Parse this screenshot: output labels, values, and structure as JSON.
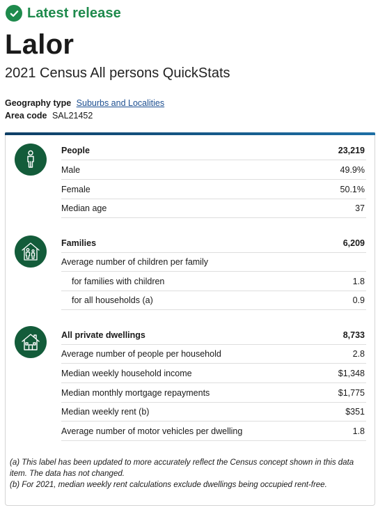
{
  "status": {
    "label": "Latest release"
  },
  "page": {
    "title": "Lalor",
    "subtitle": "2021 Census All persons QuickStats"
  },
  "meta": {
    "geography_label": "Geography type",
    "geography_value": "Suburbs and Localities",
    "area_label": "Area code",
    "area_value": "SAL21452"
  },
  "people": {
    "icon": "person-icon",
    "rows": [
      {
        "label": "People",
        "value": "23,219"
      },
      {
        "label": "Male",
        "value": "49.9%"
      },
      {
        "label": "Female",
        "value": "50.1%"
      },
      {
        "label": "Median age",
        "value": "37"
      }
    ]
  },
  "families": {
    "icon": "family-home-icon",
    "rows": [
      {
        "label": "Families",
        "value": "6,209"
      },
      {
        "label": "Average number of children per family",
        "value": ""
      },
      {
        "label": "for families with children",
        "value": "1.8"
      },
      {
        "label": "for all households (a)",
        "value": "0.9"
      }
    ]
  },
  "dwellings": {
    "icon": "house-icon",
    "rows": [
      {
        "label": "All private dwellings",
        "value": "8,733"
      },
      {
        "label": "Average number of people per household",
        "value": "2.8"
      },
      {
        "label": "Median weekly household income",
        "value": "$1,348"
      },
      {
        "label": "Median monthly mortgage repayments",
        "value": "$1,775"
      },
      {
        "label": "Median weekly rent (b)",
        "value": "$351"
      },
      {
        "label": "Average number of motor vehicles per dwelling",
        "value": "1.8"
      }
    ]
  },
  "notes": {
    "a": "(a) This label has been updated to more accurately reflect the Census concept shown in this data item. The data has not changed.",
    "b": "(b) For 2021, median weekly rent calculations exclude dwellings being occupied rent-free."
  },
  "colors": {
    "accent_green": "#1e8a4c",
    "icon_green": "#135c3a",
    "link_blue": "#1d4f91"
  }
}
